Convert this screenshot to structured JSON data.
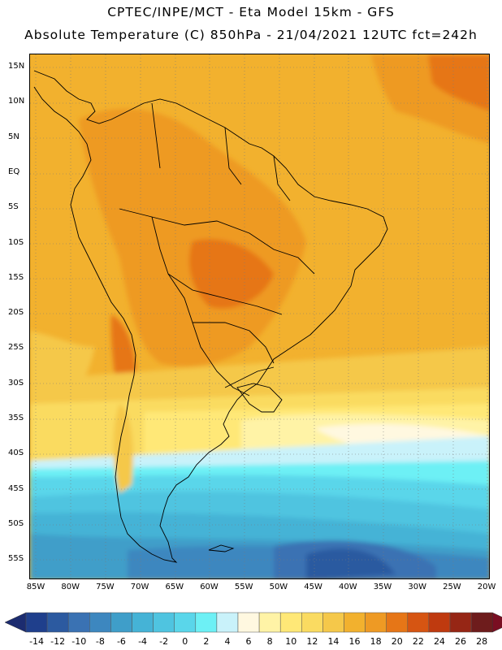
{
  "header": {
    "title_line1": "CPTEC/INPE/MCT -  Eta Model 15km - GFS",
    "title_line2": "Absolute Temperature (C) 850hPa - 21/04/2021 12UTC fct=242h"
  },
  "map": {
    "lat_labels": [
      "15N",
      "10N",
      "5N",
      "EQ",
      "5S",
      "10S",
      "15S",
      "20S",
      "25S",
      "30S",
      "35S",
      "40S",
      "45S",
      "50S",
      "55S"
    ],
    "lon_labels": [
      "85W",
      "80W",
      "75W",
      "70W",
      "65W",
      "60W",
      "55W",
      "50W",
      "45W",
      "40W",
      "35W",
      "30W",
      "25W",
      "20W"
    ]
  },
  "colorbar": {
    "labels": [
      "-14",
      "-12",
      "-10",
      "-8",
      "-6",
      "-4",
      "-2",
      "0",
      "2",
      "4",
      "6",
      "8",
      "10",
      "12",
      "14",
      "16",
      "18",
      "20",
      "22",
      "24",
      "26",
      "28"
    ],
    "colors": [
      "#1f3f8c",
      "#2c5aa0",
      "#3a72b3",
      "#3d87bf",
      "#3f9ec9",
      "#45b3d6",
      "#4fc4e0",
      "#5ad6ea",
      "#6df0f5",
      "#c9f2fa",
      "#fff8e0",
      "#fff3a6",
      "#ffe877",
      "#fadb61",
      "#f5c84a",
      "#f2b12e",
      "#ee9a24",
      "#e67617",
      "#d65512",
      "#bf3a0f",
      "#962615",
      "#6e1c1c"
    ],
    "low_arrow_color": "#1c2c70",
    "high_arrow_color": "#7a0e22"
  }
}
